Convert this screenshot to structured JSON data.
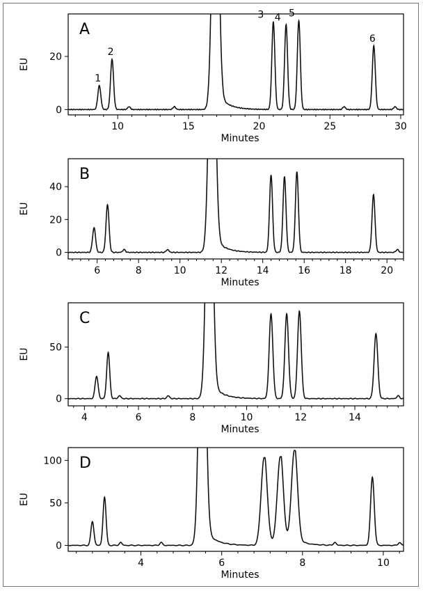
{
  "chart_data": [
    {
      "type": "line",
      "panel_label": "A",
      "xlabel": "Minutes",
      "ylabel": "EU",
      "xlim": [
        6.5,
        30.2
      ],
      "ylim": [
        -2,
        36
      ],
      "xticks": [
        10,
        15,
        20,
        25,
        30
      ],
      "yticks": [
        0,
        20
      ],
      "baseline_blips": [
        10.8,
        14,
        26,
        29.6
      ],
      "peaks": [
        {
          "label": "1",
          "x": 8.7,
          "y": 9
        },
        {
          "label": "2",
          "x": 9.6,
          "y": 19
        },
        {
          "label": "",
          "x": 16.9,
          "y": 120
        },
        {
          "label": "3",
          "x": 21.0,
          "y": 33
        },
        {
          "label": "4",
          "x": 21.9,
          "y": 32
        },
        {
          "label": "5",
          "x": 22.8,
          "y": 33.5
        },
        {
          "label": "6",
          "x": 28.1,
          "y": 24
        }
      ]
    },
    {
      "type": "line",
      "panel_label": "B",
      "xlabel": "Minutes",
      "ylabel": "EU",
      "xlim": [
        4.6,
        20.8
      ],
      "ylim": [
        -4,
        57
      ],
      "xticks": [
        6,
        8,
        10,
        12,
        14,
        16,
        18,
        20
      ],
      "yticks": [
        0,
        20,
        40
      ],
      "baseline_blips": [
        7.3,
        9.4,
        20.5
      ],
      "peaks": [
        {
          "label": "",
          "x": 5.85,
          "y": 15
        },
        {
          "label": "",
          "x": 6.5,
          "y": 29
        },
        {
          "label": "",
          "x": 11.55,
          "y": 180
        },
        {
          "label": "",
          "x": 14.4,
          "y": 47
        },
        {
          "label": "",
          "x": 15.05,
          "y": 46
        },
        {
          "label": "",
          "x": 15.65,
          "y": 49
        },
        {
          "label": "",
          "x": 19.35,
          "y": 35
        }
      ]
    },
    {
      "type": "line",
      "panel_label": "C",
      "xlabel": "Minutes",
      "ylabel": "EU",
      "xlim": [
        3.4,
        15.8
      ],
      "ylim": [
        -7,
        93
      ],
      "xticks": [
        4,
        6,
        8,
        10,
        12,
        14
      ],
      "yticks": [
        0,
        50
      ],
      "baseline_blips": [
        5.3,
        7.1,
        15.6
      ],
      "peaks": [
        {
          "label": "",
          "x": 4.45,
          "y": 22
        },
        {
          "label": "",
          "x": 4.88,
          "y": 45
        },
        {
          "label": "",
          "x": 8.62,
          "y": 300
        },
        {
          "label": "",
          "x": 10.9,
          "y": 82
        },
        {
          "label": "",
          "x": 11.48,
          "y": 82
        },
        {
          "label": "",
          "x": 11.95,
          "y": 85
        },
        {
          "label": "",
          "x": 14.78,
          "y": 63
        }
      ]
    },
    {
      "type": "line",
      "panel_label": "D",
      "xlabel": "Minutes",
      "ylabel": "EU",
      "xlim": [
        2.2,
        10.5
      ],
      "ylim": [
        -7,
        115
      ],
      "xticks": [
        4,
        6,
        8,
        10
      ],
      "yticks": [
        0,
        50,
        100
      ],
      "baseline_blips": [
        3.5,
        4.5,
        8.8,
        10.4
      ],
      "peaks": [
        {
          "label": "",
          "x": 2.8,
          "y": 28
        },
        {
          "label": "",
          "x": 3.1,
          "y": 57
        },
        {
          "label": "",
          "x": 5.52,
          "y": 400
        },
        {
          "label": "",
          "x": 7.05,
          "y": 103
        },
        {
          "label": "",
          "x": 7.45,
          "y": 103
        },
        {
          "label": "",
          "x": 7.8,
          "y": 110
        },
        {
          "label": "",
          "x": 9.73,
          "y": 80
        }
      ]
    }
  ]
}
